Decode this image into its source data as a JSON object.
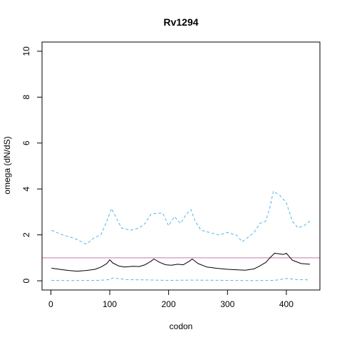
{
  "chart_data": {
    "type": "line",
    "title": "Rv1294",
    "xlabel": "codon",
    "ylabel": "omega (dN/dS)",
    "xlim": [
      -15,
      457
    ],
    "ylim": [
      -0.4,
      10.4
    ],
    "x_ticks": [
      0,
      100,
      200,
      300,
      400
    ],
    "y_ticks": [
      0,
      2,
      4,
      6,
      8,
      10
    ],
    "reference_line": {
      "y": 1,
      "color": "#cc79a7"
    },
    "grid": false,
    "series": [
      {
        "style": "solid",
        "color": "#000000",
        "x": [
          1,
          15,
          30,
          45,
          60,
          75,
          85,
          95,
          100,
          105,
          115,
          125,
          140,
          150,
          160,
          170,
          175,
          185,
          195,
          205,
          215,
          225,
          235,
          240,
          250,
          265,
          280,
          300,
          315,
          330,
          345,
          355,
          365,
          372,
          380,
          395,
          400,
          410,
          425,
          440
        ],
        "y": [
          0.55,
          0.5,
          0.45,
          0.42,
          0.45,
          0.5,
          0.6,
          0.75,
          0.92,
          0.78,
          0.65,
          0.6,
          0.63,
          0.62,
          0.7,
          0.85,
          0.95,
          0.8,
          0.7,
          0.68,
          0.72,
          0.7,
          0.85,
          0.95,
          0.75,
          0.6,
          0.55,
          0.5,
          0.48,
          0.46,
          0.52,
          0.65,
          0.8,
          1.0,
          1.2,
          1.15,
          1.2,
          0.9,
          0.75,
          0.72
        ]
      },
      {
        "style": "dashed",
        "color": "#56b4e9",
        "x": [
          1,
          10,
          20,
          40,
          60,
          75,
          85,
          95,
          103,
          110,
          120,
          135,
          150,
          160,
          170,
          180,
          190,
          200,
          210,
          220,
          230,
          238,
          245,
          255,
          270,
          285,
          300,
          315,
          325,
          335,
          345,
          355,
          365,
          372,
          378,
          390,
          400,
          410,
          420,
          430,
          440
        ],
        "y": [
          2.2,
          2.1,
          2.0,
          1.85,
          1.6,
          1.9,
          2.0,
          2.6,
          3.15,
          2.8,
          2.3,
          2.2,
          2.3,
          2.5,
          2.9,
          2.95,
          2.95,
          2.4,
          2.8,
          2.5,
          2.9,
          3.1,
          2.6,
          2.2,
          2.1,
          2.0,
          2.1,
          2.0,
          1.7,
          1.9,
          2.1,
          2.5,
          2.6,
          3.2,
          3.9,
          3.7,
          3.4,
          2.6,
          2.3,
          2.4,
          2.6
        ]
      },
      {
        "style": "dashed",
        "color": "#56b4e9",
        "x": [
          1,
          40,
          80,
          100,
          105,
          130,
          160,
          200,
          240,
          300,
          340,
          380,
          400,
          420,
          440
        ],
        "y": [
          0.02,
          0.01,
          0.02,
          0.05,
          0.12,
          0.05,
          0.04,
          0.02,
          0.03,
          0.02,
          0.01,
          0.02,
          0.1,
          0.05,
          0.04
        ]
      }
    ]
  }
}
